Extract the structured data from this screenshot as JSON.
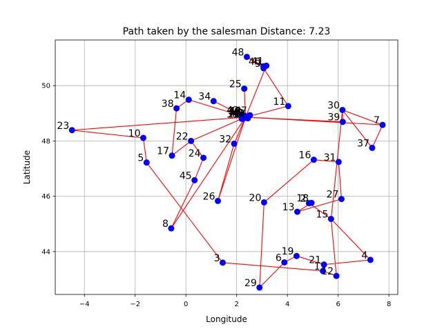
{
  "chart_data": {
    "type": "scatter",
    "title": "Path taken by the salesman Distance: 7.23",
    "xlabel": "Longitude",
    "ylabel": "Latitude",
    "xlim": [
      -5.15,
      8.35
    ],
    "ylim": [
      42.45,
      51.65
    ],
    "xticks": [
      -4,
      -2,
      0,
      2,
      4,
      6,
      8
    ],
    "yticks": [
      44,
      46,
      48,
      50
    ],
    "grid": true,
    "colors": {
      "point": "#0000ff",
      "path": "#ff0000",
      "grid": "#b0b0b0"
    },
    "cities": [
      {
        "label": "0",
        "x": 2.35,
        "y": 48.86
      },
      {
        "label": "1",
        "x": 5.4,
        "y": 43.3
      },
      {
        "label": "2",
        "x": 4.85,
        "y": 45.75
      },
      {
        "label": "3",
        "x": 1.45,
        "y": 43.6
      },
      {
        "label": "4",
        "x": 7.27,
        "y": 43.7
      },
      {
        "label": "5",
        "x": -1.55,
        "y": 47.22
      },
      {
        "label": "6",
        "x": 3.88,
        "y": 43.61
      },
      {
        "label": "7",
        "x": 7.75,
        "y": 48.58
      },
      {
        "label": "8",
        "x": -0.58,
        "y": 44.84
      },
      {
        "label": "9",
        "x": 3.06,
        "y": 50.63
      },
      {
        "label": "10",
        "x": -1.68,
        "y": 48.11
      },
      {
        "label": "11",
        "x": 4.03,
        "y": 49.26
      },
      {
        "label": "12",
        "x": 5.93,
        "y": 43.12
      },
      {
        "label": "13",
        "x": 4.39,
        "y": 45.44
      },
      {
        "label": "14",
        "x": 0.11,
        "y": 49.49
      },
      {
        "label": "15",
        "x": 5.72,
        "y": 45.18
      },
      {
        "label": "16",
        "x": 5.04,
        "y": 47.32
      },
      {
        "label": "17",
        "x": -0.55,
        "y": 47.47
      },
      {
        "label": "18",
        "x": 4.95,
        "y": 45.76
      },
      {
        "label": "19",
        "x": 4.36,
        "y": 43.84
      },
      {
        "label": "20",
        "x": 3.08,
        "y": 45.78
      },
      {
        "label": "21",
        "x": 5.44,
        "y": 43.53
      },
      {
        "label": "22",
        "x": 0.2,
        "y": 48.0
      },
      {
        "label": "23",
        "x": -4.49,
        "y": 48.39
      },
      {
        "label": "24",
        "x": 0.69,
        "y": 47.39
      },
      {
        "label": "25",
        "x": 2.3,
        "y": 49.89
      },
      {
        "label": "26",
        "x": 1.26,
        "y": 45.83
      },
      {
        "label": "27",
        "x": 6.13,
        "y": 45.9
      },
      {
        "label": "28",
        "x": 2.25,
        "y": 48.8
      },
      {
        "label": "29",
        "x": 2.9,
        "y": 42.7
      },
      {
        "label": "30",
        "x": 6.17,
        "y": 49.12
      },
      {
        "label": "31",
        "x": 6.02,
        "y": 47.24
      },
      {
        "label": "32",
        "x": 1.9,
        "y": 47.9
      },
      {
        "label": "33",
        "x": 2.2,
        "y": 48.8
      },
      {
        "label": "34",
        "x": 1.09,
        "y": 49.44
      },
      {
        "label": "35",
        "x": 2.28,
        "y": 48.9
      },
      {
        "label": "36",
        "x": 2.25,
        "y": 48.92
      },
      {
        "label": "37",
        "x": 7.34,
        "y": 47.75
      },
      {
        "label": "38",
        "x": -0.37,
        "y": 49.18
      },
      {
        "label": "39",
        "x": 6.18,
        "y": 48.69
      },
      {
        "label": "40",
        "x": 3.06,
        "y": 50.7
      },
      {
        "label": "41",
        "x": 3.17,
        "y": 50.72
      },
      {
        "label": "42",
        "x": 2.2,
        "y": 48.95
      },
      {
        "label": "43",
        "x": 2.3,
        "y": 48.92
      },
      {
        "label": "44",
        "x": 2.44,
        "y": 48.82
      },
      {
        "label": "45",
        "x": 0.34,
        "y": 46.58
      },
      {
        "label": "46",
        "x": 2.3,
        "y": 48.83
      },
      {
        "label": "47",
        "x": 2.52,
        "y": 48.93
      },
      {
        "label": "48",
        "x": 2.4,
        "y": 51.04
      },
      {
        "label": "49",
        "x": 2.42,
        "y": 48.85
      }
    ],
    "path": [
      "23",
      "10",
      "5",
      "3",
      "1",
      "12",
      "15",
      "2",
      "18",
      "13",
      "27",
      "31",
      "16",
      "20",
      "29",
      "6",
      "19",
      "21",
      "4",
      "15",
      "30",
      "7",
      "37",
      "30",
      "39",
      "0",
      "8",
      "45",
      "24",
      "22",
      "0",
      "41",
      "40",
      "48",
      "9",
      "11",
      "0",
      "14",
      "38",
      "17",
      "22",
      "0",
      "34",
      "0",
      "25",
      "0",
      "32",
      "26",
      "0",
      "7",
      "0",
      "23"
    ]
  }
}
